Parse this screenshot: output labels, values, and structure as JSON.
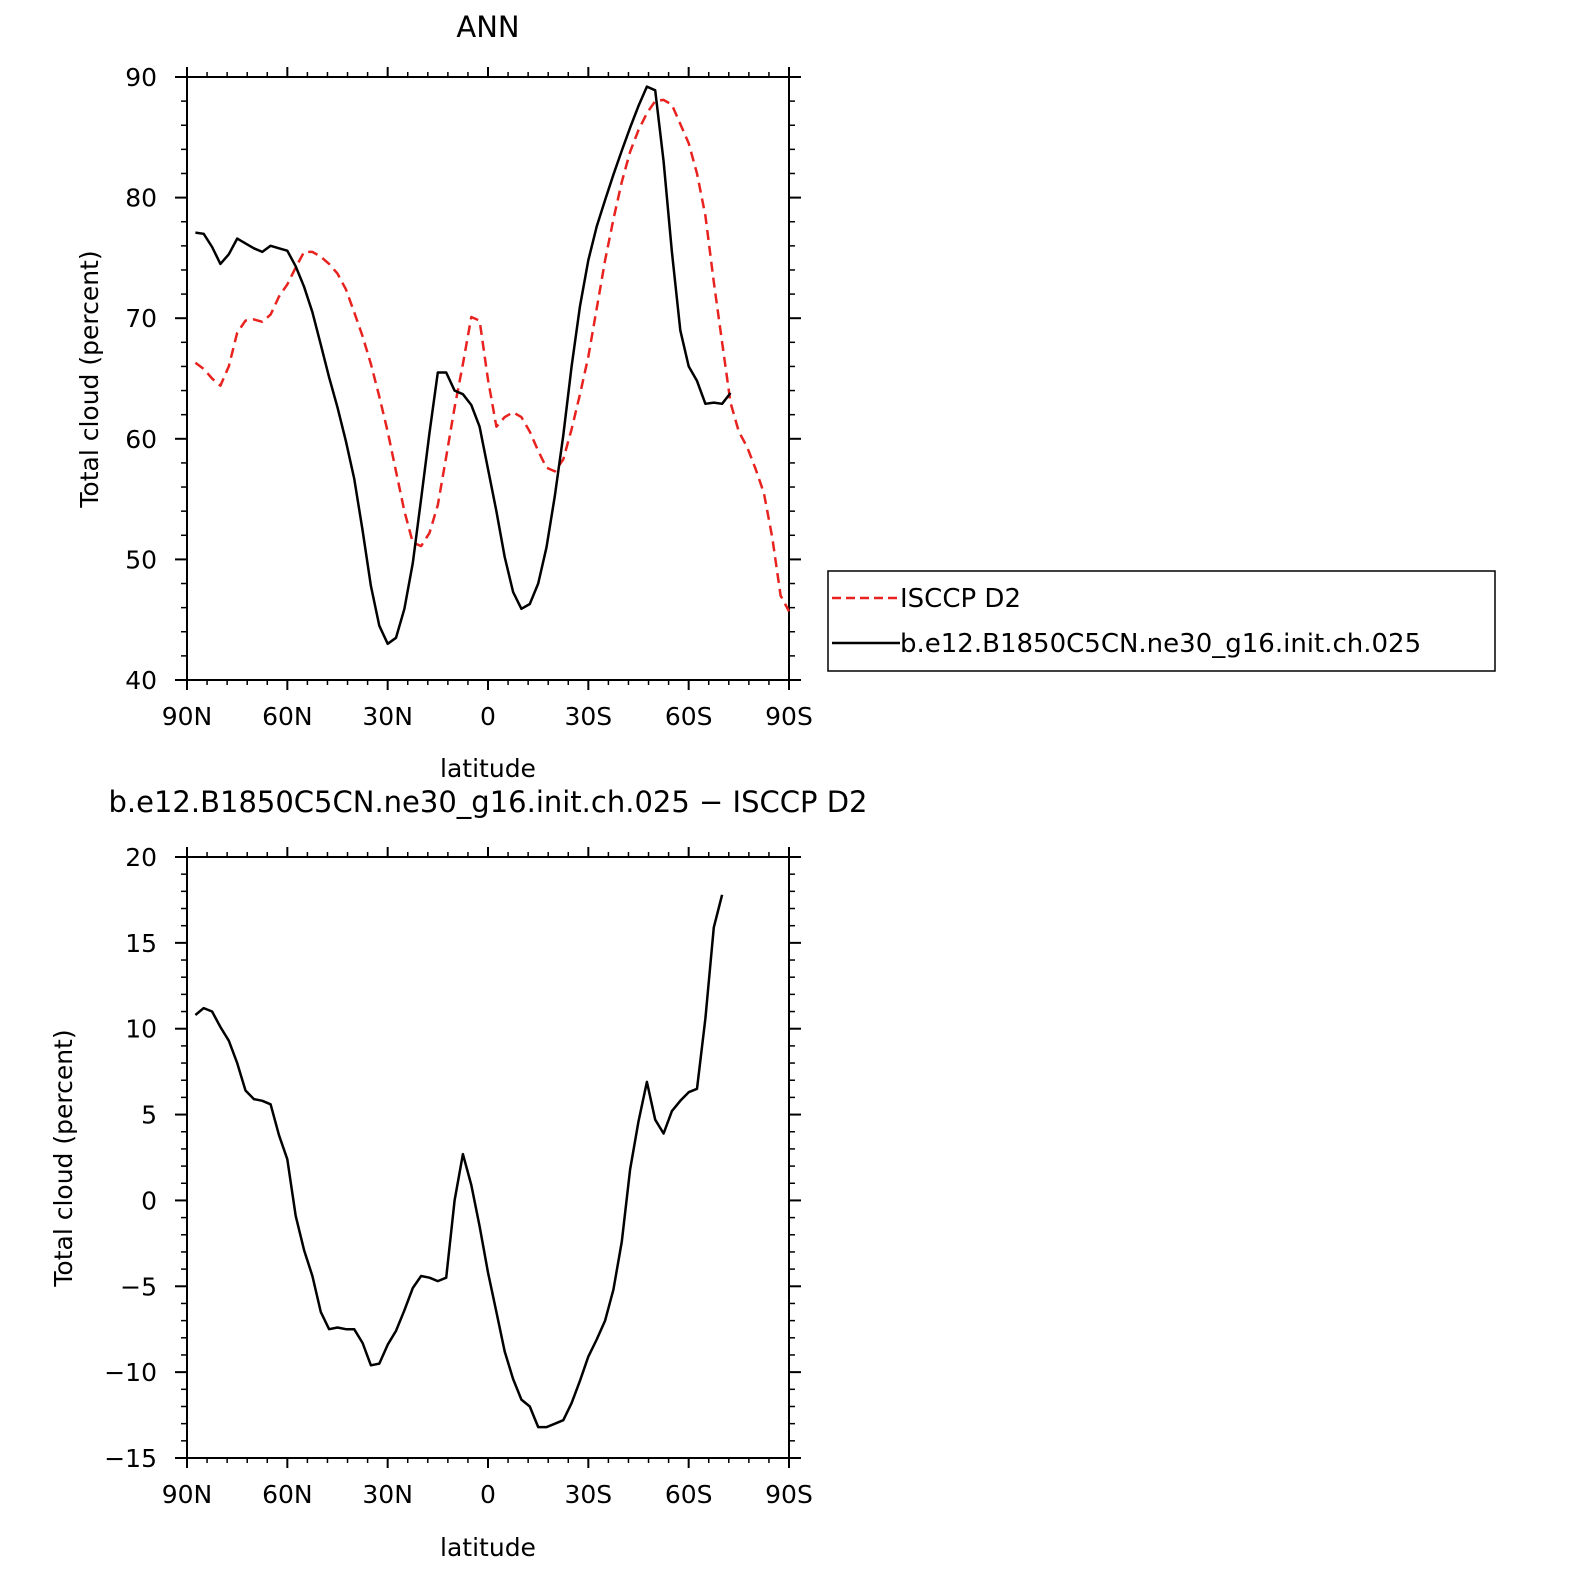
{
  "chart_data": [
    {
      "type": "line",
      "title": "ANN",
      "xlabel": "latitude",
      "ylabel": "Total cloud (percent)",
      "xlim": [
        90,
        -90
      ],
      "ylim": [
        40,
        90
      ],
      "x_ticks": [
        {
          "value": 90,
          "label": "90N"
        },
        {
          "value": 60,
          "label": "60N"
        },
        {
          "value": 30,
          "label": "30N"
        },
        {
          "value": 0,
          "label": "0"
        },
        {
          "value": -30,
          "label": "30S"
        },
        {
          "value": -60,
          "label": "60S"
        },
        {
          "value": -90,
          "label": "90S"
        }
      ],
      "y_ticks": [
        {
          "value": 40,
          "label": "40"
        },
        {
          "value": 50,
          "label": "50"
        },
        {
          "value": 60,
          "label": "60"
        },
        {
          "value": 70,
          "label": "70"
        },
        {
          "value": 80,
          "label": "80"
        },
        {
          "value": 90,
          "label": "90"
        }
      ],
      "legend_position": "right",
      "series": [
        {
          "name": "ISCCP D2",
          "color": "#e8231f",
          "dash": "dashed",
          "points": [
            [
              87.5,
              66.3
            ],
            [
              85,
              65.8
            ],
            [
              82.5,
              65.0
            ],
            [
              80,
              64.4
            ],
            [
              77.5,
              66.0
            ],
            [
              75,
              68.8
            ],
            [
              72.5,
              69.8
            ],
            [
              70,
              69.9
            ],
            [
              67.5,
              69.7
            ],
            [
              65,
              70.3
            ],
            [
              62.5,
              71.8
            ],
            [
              60,
              72.8
            ],
            [
              57.5,
              74.2
            ],
            [
              55,
              75.5
            ],
            [
              52.5,
              75.5
            ],
            [
              50,
              75.1
            ],
            [
              47.5,
              74.5
            ],
            [
              45,
              73.7
            ],
            [
              42.5,
              72.4
            ],
            [
              40,
              70.5
            ],
            [
              37.5,
              68.5
            ],
            [
              35,
              66.2
            ],
            [
              32.5,
              63.5
            ],
            [
              30,
              60.6
            ],
            [
              27.5,
              57.3
            ],
            [
              25,
              54.0
            ],
            [
              22.5,
              51.4
            ],
            [
              20,
              51.1
            ],
            [
              17.5,
              52.2
            ],
            [
              15,
              54.5
            ],
            [
              12.5,
              58.5
            ],
            [
              10,
              62.6
            ],
            [
              7.5,
              66.2
            ],
            [
              5,
              70.1
            ],
            [
              2.5,
              69.8
            ],
            [
              0,
              64.9
            ],
            [
              -2.5,
              61.0
            ],
            [
              -5,
              61.8
            ],
            [
              -7.5,
              62.2
            ],
            [
              -10,
              61.8
            ],
            [
              -12.5,
              60.6
            ],
            [
              -15,
              59.0
            ],
            [
              -17.5,
              57.6
            ],
            [
              -20,
              57.3
            ],
            [
              -22.5,
              58.3
            ],
            [
              -25,
              60.8
            ],
            [
              -27.5,
              63.7
            ],
            [
              -30,
              66.8
            ],
            [
              -32.5,
              70.8
            ],
            [
              -35,
              74.8
            ],
            [
              -37.5,
              78.2
            ],
            [
              -40,
              81.3
            ],
            [
              -42.5,
              83.8
            ],
            [
              -45,
              85.6
            ],
            [
              -47.5,
              87.0
            ],
            [
              -50,
              88.0
            ],
            [
              -52.5,
              88.1
            ],
            [
              -55,
              87.7
            ],
            [
              -57.5,
              86.1
            ],
            [
              -60,
              84.5
            ],
            [
              -62.5,
              82.0
            ],
            [
              -65,
              78.5
            ],
            [
              -67.5,
              73.0
            ],
            [
              -70,
              68.0
            ],
            [
              -72.5,
              63.0
            ],
            [
              -75,
              60.6
            ],
            [
              -77.5,
              59.3
            ],
            [
              -80,
              57.5
            ],
            [
              -82.5,
              55.5
            ],
            [
              -85,
              51.8
            ],
            [
              -87.5,
              47.0
            ],
            [
              -90,
              45.7
            ]
          ]
        },
        {
          "name": "b.e12.B1850C5CN.ne30_g16.init.ch.025",
          "color": "#000000",
          "dash": "solid",
          "points": [
            [
              87.5,
              77.1
            ],
            [
              85,
              77.0
            ],
            [
              82.5,
              75.9
            ],
            [
              80,
              74.5
            ],
            [
              77.5,
              75.3
            ],
            [
              75,
              76.6
            ],
            [
              72.5,
              76.2
            ],
            [
              70,
              75.8
            ],
            [
              67.5,
              75.5
            ],
            [
              65,
              76.0
            ],
            [
              62.5,
              75.8
            ],
            [
              60,
              75.6
            ],
            [
              57.5,
              74.3
            ],
            [
              55,
              72.6
            ],
            [
              52.5,
              70.5
            ],
            [
              50,
              67.8
            ],
            [
              47.5,
              65.1
            ],
            [
              45,
              62.6
            ],
            [
              42.5,
              59.8
            ],
            [
              40,
              56.7
            ],
            [
              37.5,
              52.4
            ],
            [
              35,
              47.8
            ],
            [
              32.5,
              44.5
            ],
            [
              30,
              43.0
            ],
            [
              27.5,
              43.5
            ],
            [
              25,
              45.9
            ],
            [
              22.5,
              49.7
            ],
            [
              20,
              55.0
            ],
            [
              17.5,
              60.5
            ],
            [
              15,
              65.5
            ],
            [
              12.5,
              65.5
            ],
            [
              10,
              64.0
            ],
            [
              7.5,
              63.7
            ],
            [
              5,
              62.8
            ],
            [
              2.5,
              61.0
            ],
            [
              0,
              57.5
            ],
            [
              -2.5,
              54.0
            ],
            [
              -5,
              50.2
            ],
            [
              -7.5,
              47.3
            ],
            [
              -10,
              45.9
            ],
            [
              -12.5,
              46.3
            ],
            [
              -15,
              48.0
            ],
            [
              -17.5,
              51.0
            ],
            [
              -20,
              55.3
            ],
            [
              -22.5,
              60.3
            ],
            [
              -25,
              66.0
            ],
            [
              -27.5,
              71.0
            ],
            [
              -30,
              74.8
            ],
            [
              -32.5,
              77.6
            ],
            [
              -35,
              79.8
            ],
            [
              -37.5,
              81.9
            ],
            [
              -40,
              83.9
            ],
            [
              -42.5,
              85.8
            ],
            [
              -45,
              87.6
            ],
            [
              -47.5,
              89.2
            ],
            [
              -50,
              88.9
            ],
            [
              -52.5,
              83.0
            ],
            [
              -55,
              75.5
            ],
            [
              -57.5,
              69.0
            ],
            [
              -60,
              66.0
            ],
            [
              -62.5,
              64.8
            ],
            [
              -65,
              62.9
            ],
            [
              -67.5,
              63.0
            ],
            [
              -70,
              62.9
            ],
            [
              -72.5,
              63.8
            ]
          ]
        }
      ]
    },
    {
      "type": "line",
      "title": "b.e12.B1850C5CN.ne30_g16.init.ch.025 − ISCCP D2",
      "xlabel": "latitude",
      "ylabel": "Total cloud (percent)",
      "xlim": [
        90,
        -90
      ],
      "ylim": [
        -15,
        20
      ],
      "x_ticks": [
        {
          "value": 90,
          "label": "90N"
        },
        {
          "value": 60,
          "label": "60N"
        },
        {
          "value": 30,
          "label": "30N"
        },
        {
          "value": 0,
          "label": "0"
        },
        {
          "value": -30,
          "label": "30S"
        },
        {
          "value": -60,
          "label": "60S"
        },
        {
          "value": -90,
          "label": "90S"
        }
      ],
      "y_ticks": [
        {
          "value": -15,
          "label": "−15"
        },
        {
          "value": -10,
          "label": "−10"
        },
        {
          "value": -5,
          "label": "−5"
        },
        {
          "value": 0,
          "label": "0"
        },
        {
          "value": 5,
          "label": "5"
        },
        {
          "value": 10,
          "label": "10"
        },
        {
          "value": 15,
          "label": "15"
        },
        {
          "value": 20,
          "label": "20"
        }
      ],
      "series": [
        {
          "color": "#000000",
          "dash": "solid",
          "points": [
            [
              87.5,
              10.8
            ],
            [
              85,
              11.2
            ],
            [
              82.5,
              11.0
            ],
            [
              80,
              10.1
            ],
            [
              77.5,
              9.3
            ],
            [
              75,
              8.0
            ],
            [
              72.5,
              6.4
            ],
            [
              70,
              5.9
            ],
            [
              67.5,
              5.8
            ],
            [
              65,
              5.6
            ],
            [
              62.5,
              3.8
            ],
            [
              60,
              2.4
            ],
            [
              57.5,
              -0.9
            ],
            [
              55,
              -2.9
            ],
            [
              52.5,
              -4.4
            ],
            [
              50,
              -6.5
            ],
            [
              47.5,
              -7.5
            ],
            [
              45,
              -7.4
            ],
            [
              42.5,
              -7.5
            ],
            [
              40,
              -7.5
            ],
            [
              37.5,
              -8.3
            ],
            [
              35,
              -9.6
            ],
            [
              32.5,
              -9.5
            ],
            [
              30,
              -8.4
            ],
            [
              27.5,
              -7.6
            ],
            [
              25,
              -6.4
            ],
            [
              22.5,
              -5.1
            ],
            [
              20,
              -4.4
            ],
            [
              17.5,
              -4.5
            ],
            [
              15,
              -4.7
            ],
            [
              12.5,
              -4.5
            ],
            [
              10,
              0.0
            ],
            [
              7.5,
              2.7
            ],
            [
              5,
              0.9
            ],
            [
              2.5,
              -1.5
            ],
            [
              0,
              -4.2
            ],
            [
              -2.5,
              -6.5
            ],
            [
              -5,
              -8.8
            ],
            [
              -7.5,
              -10.4
            ],
            [
              -10,
              -11.6
            ],
            [
              -12.5,
              -12.0
            ],
            [
              -15,
              -13.2
            ],
            [
              -17.5,
              -13.2
            ],
            [
              -20,
              -13.0
            ],
            [
              -22.5,
              -12.8
            ],
            [
              -25,
              -11.8
            ],
            [
              -27.5,
              -10.5
            ],
            [
              -30,
              -9.1
            ],
            [
              -32.5,
              -8.1
            ],
            [
              -35,
              -7.0
            ],
            [
              -37.5,
              -5.2
            ],
            [
              -40,
              -2.4
            ],
            [
              -42.5,
              1.8
            ],
            [
              -45,
              4.6
            ],
            [
              -47.5,
              6.9
            ],
            [
              -50,
              4.7
            ],
            [
              -52.5,
              3.9
            ],
            [
              -55,
              5.2
            ],
            [
              -57.5,
              5.8
            ],
            [
              -60,
              6.3
            ],
            [
              -62.5,
              6.5
            ],
            [
              -65,
              10.6
            ],
            [
              -67.5,
              15.9
            ],
            [
              -70,
              17.8
            ]
          ]
        }
      ]
    }
  ]
}
